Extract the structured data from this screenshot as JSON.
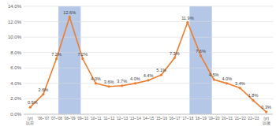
{
  "chart_data": {
    "type": "line",
    "categories": [
      "(yr) 以前",
      "'06~'07",
      "'07~'08",
      "'08~'09",
      "'09~'10",
      "'10~'11",
      "'11~'12",
      "'12~'13",
      "'13~'14",
      "'14~'15",
      "'15~'16",
      "'16~'17",
      "'17~'18",
      "'18~'19",
      "'19~'20",
      "'20~'21",
      "'21~'22",
      "'22~'23",
      "(yr) 以後"
    ],
    "values": [
      0.9,
      2.6,
      7.2,
      12.6,
      7.2,
      4.0,
      3.6,
      3.7,
      4.0,
      4.4,
      5.1,
      7.3,
      11.9,
      7.6,
      4.5,
      4.0,
      3.4,
      1.8,
      0.3
    ],
    "value_labels": [
      "0.9%",
      "2.6%",
      "7.2%",
      "12.6%",
      "7.2%",
      "4.0%",
      "3.6%",
      "3.7%",
      "4.0%",
      "4.4%",
      "5.1%",
      "7.3%",
      "11.9%",
      "7.6%",
      "4.5%",
      "4.0%",
      "3.4%",
      "1.8%",
      "0.3%"
    ],
    "highlights": [
      "'08~'09",
      "'18~'19"
    ],
    "color": "#ed7d31",
    "marker": "circle",
    "ylim": [
      0,
      14
    ],
    "yticks": [
      {
        "value": 0,
        "label": "0.0%"
      },
      {
        "value": 2,
        "label": "2.0%"
      },
      {
        "value": 4,
        "label": "4.0%"
      },
      {
        "value": 6,
        "label": "6.0%"
      },
      {
        "value": 8,
        "label": "8.0%"
      },
      {
        "value": 10,
        "label": "10.0%"
      },
      {
        "value": 12,
        "label": "12.0%"
      },
      {
        "value": 14,
        "label": "14.0%"
      }
    ],
    "grid": true,
    "data_labels": true
  }
}
